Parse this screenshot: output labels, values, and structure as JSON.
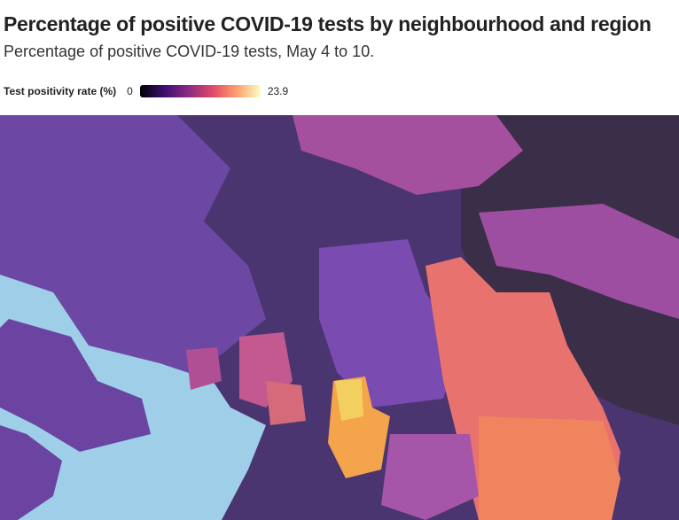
{
  "title": "Percentage of positive COVID-19 tests by neighbourhood and region",
  "subtitle": "Percentage of positive COVID-19 tests, May 4 to 10.",
  "legend": {
    "label": "Test positivity rate (%)",
    "min": 0,
    "max": 23.9
  }
}
